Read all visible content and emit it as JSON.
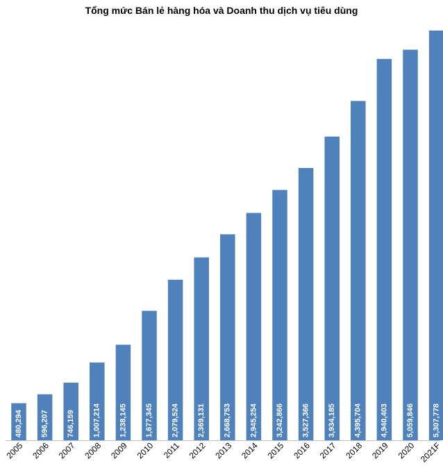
{
  "chart_data": {
    "type": "bar",
    "title": "Tổng mức Bán lẻ hàng hóa và Doanh thu dịch vụ tiêu dùng",
    "xlabel": "",
    "ylabel": "",
    "categories": [
      "2005",
      "2006",
      "2007",
      "2008",
      "2009",
      "2010",
      "2011",
      "2012",
      "2013",
      "2014",
      "2015",
      "2016",
      "2017",
      "2018",
      "2019",
      "2020",
      "2021F"
    ],
    "values": [
      480294,
      596207,
      746159,
      1007214,
      1238145,
      1677345,
      2079524,
      2369131,
      2668753,
      2945254,
      3242866,
      3527366,
      3934185,
      4395704,
      4940403,
      5059846,
      5307778
    ],
    "value_labels": [
      "480,294",
      "596,207",
      "746,159",
      "1,007,214",
      "1,238,145",
      "1,677,345",
      "2,079,524",
      "2,369,131",
      "2,668,753",
      "2,945,254",
      "3,242,866",
      "3,527,366",
      "3,934,185",
      "4,395,704",
      "4,940,403",
      "5,059,846",
      "5,307,778"
    ],
    "ylim": [
      0,
      5307778
    ],
    "grid": false,
    "bar_color": "#4f81bd"
  }
}
